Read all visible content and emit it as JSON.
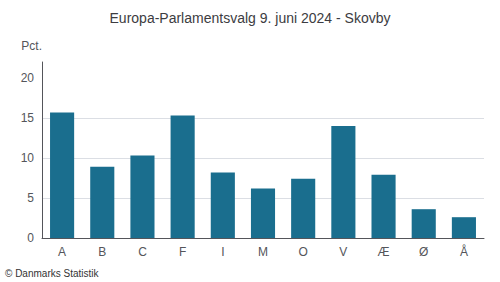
{
  "chart_data": {
    "type": "bar",
    "title": "Europa-Parlamentsvalg 9. juni 2024 - Skovby",
    "categories": [
      "A",
      "B",
      "C",
      "F",
      "I",
      "M",
      "O",
      "V",
      "Æ",
      "Ø",
      "Å"
    ],
    "values": [
      15.7,
      8.9,
      10.3,
      15.3,
      8.2,
      6.2,
      7.4,
      14.0,
      7.9,
      3.6,
      2.6
    ],
    "color": "#1a6e8e",
    "ylabel": "Pct.",
    "footer": "© Danmarks Statistik",
    "ylim": [
      0,
      22
    ],
    "yticks": [
      0,
      5,
      10,
      15,
      20
    ],
    "grid": true
  }
}
